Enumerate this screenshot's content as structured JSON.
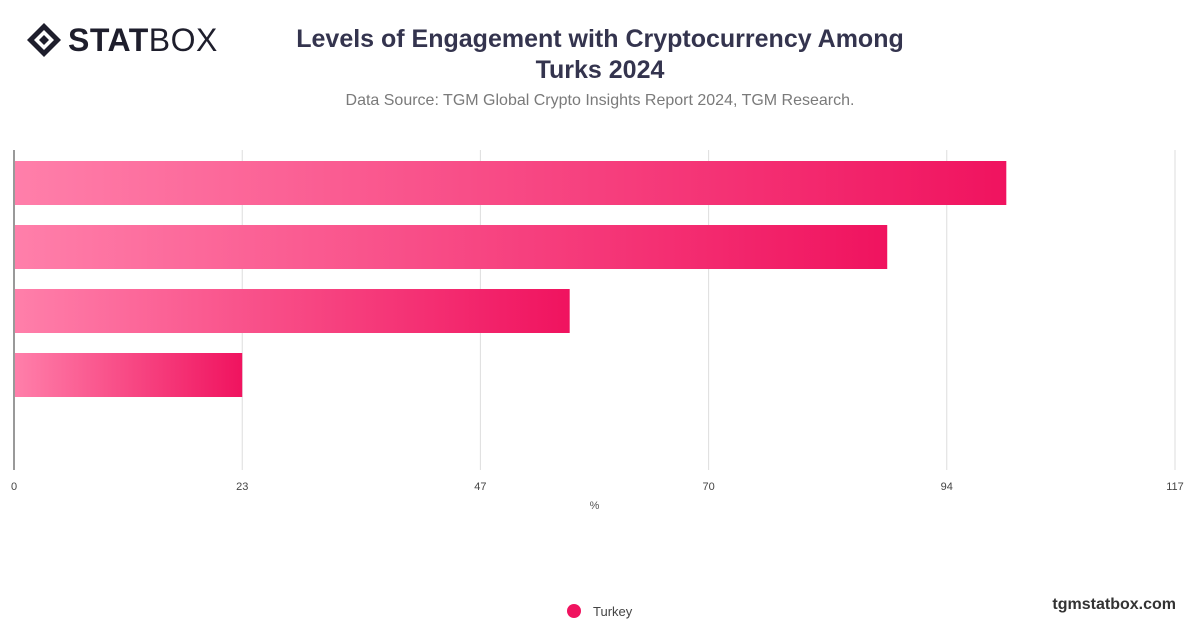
{
  "brand": {
    "logo_bold": "STAT",
    "logo_light": "BOX",
    "site": "tgmstatbox.com"
  },
  "header": {
    "title": "Levels of Engagement with Cryptocurrency Among Turks 2024",
    "subtitle": "Data Source: TGM Global Crypto Insights Report 2024, TGM Research."
  },
  "colors": {
    "bar_start": "#ff7faa",
    "bar_end": "#f0135f",
    "grid": "#dddddd",
    "axis": "#333333",
    "legend": "#f0135f"
  },
  "chart_data": {
    "type": "bar",
    "orientation": "horizontal",
    "categories": [
      "",
      "",
      "",
      ""
    ],
    "series": [
      {
        "name": "Turkey",
        "values": [
          100,
          88,
          56,
          23
        ]
      }
    ],
    "xlabel": "%",
    "ylabel": "",
    "xlim": [
      0,
      117
    ],
    "xticks": [
      "0",
      "23",
      "47",
      "70",
      "94",
      "117"
    ],
    "grid": true,
    "legend_position": "bottom-center"
  }
}
